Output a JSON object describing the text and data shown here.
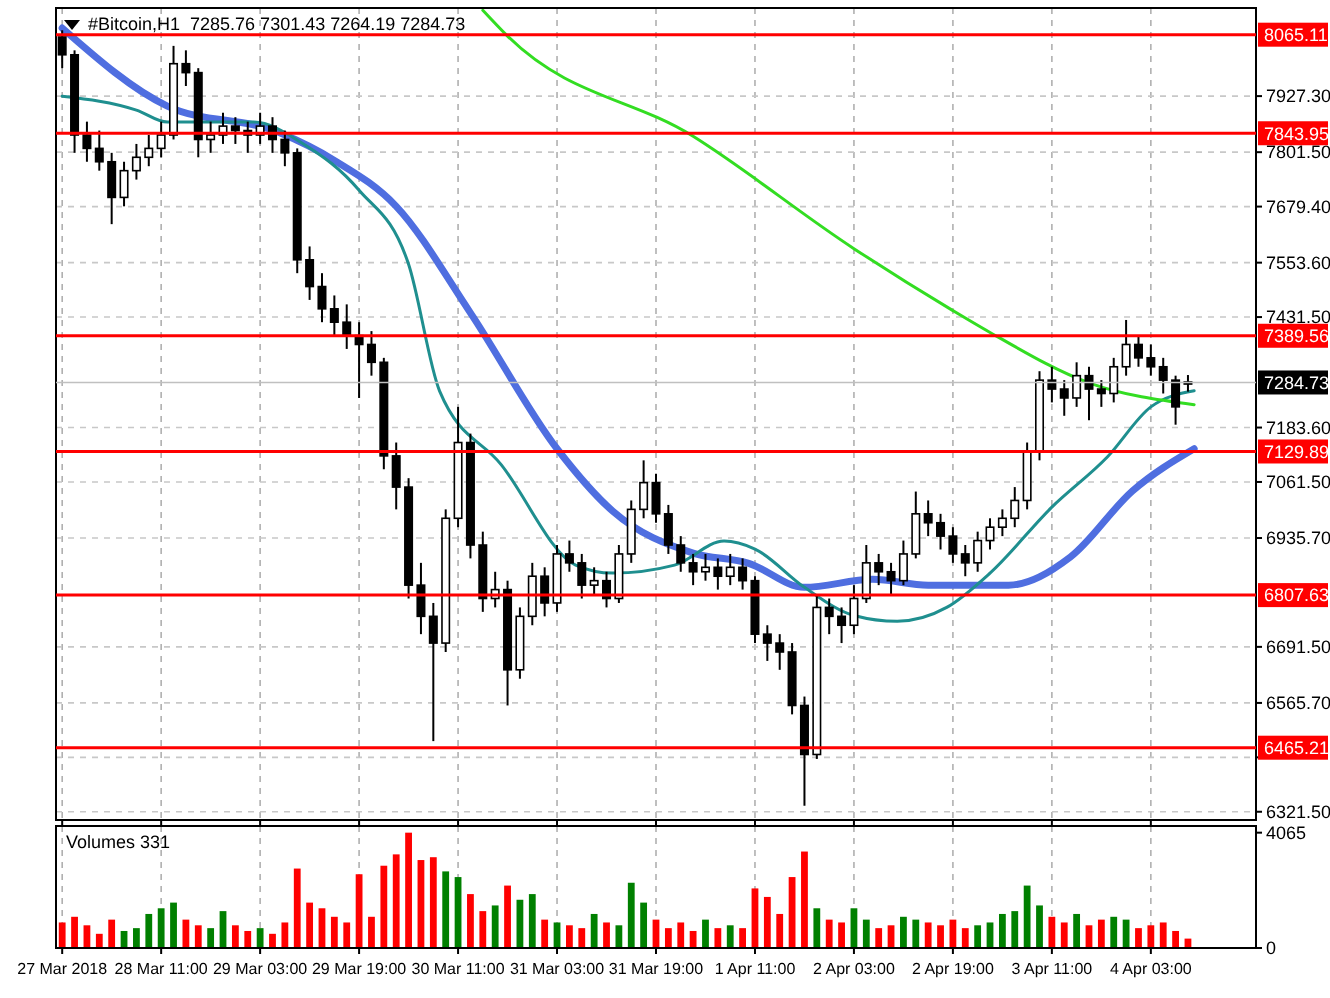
{
  "chart_data": [
    {
      "type": "candlestick",
      "title": "#Bitcoin,H1  7285.76 7301.43 7264.19 7284.73",
      "grid": true,
      "tick_labels": "y",
      "xlim": [
        "2018-03-27T18:00",
        "2018-04-04T20:00"
      ],
      "xticks": [
        {
          "value": "2018-03-27T19:00",
          "label": null
        },
        {
          "value": "2018-03-28T11:00",
          "label": null
        },
        {
          "value": "2018-03-29T03:00",
          "label": null
        },
        {
          "value": "2018-03-29T19:00",
          "label": null
        },
        {
          "value": "2018-03-30T11:00",
          "label": null
        },
        {
          "value": "2018-03-31T03:00",
          "label": null
        },
        {
          "value": "2018-03-31T19:00",
          "label": null
        },
        {
          "value": "2018-04-01T11:00",
          "label": null
        },
        {
          "value": "2018-04-02T03:00",
          "label": null
        },
        {
          "value": "2018-04-02T19:00",
          "label": null
        },
        {
          "value": "2018-04-03T11:00",
          "label": null
        },
        {
          "value": "2018-04-04T03:00",
          "label": null
        }
      ],
      "ylim": [
        6303,
        8125
      ],
      "yticks": [
        {
          "value": 7927.3,
          "label": "7927.30"
        },
        {
          "value": 7801.5,
          "label": "7801.50"
        },
        {
          "value": 7679.4,
          "label": "7679.40"
        },
        {
          "value": 7553.6,
          "label": "7553.60"
        },
        {
          "value": 7431.5,
          "label": "7431.50"
        },
        {
          "value": 7183.6,
          "label": "7183.60"
        },
        {
          "value": 7061.5,
          "label": "7061.50"
        },
        {
          "value": 6935.7,
          "label": "6935.70"
        },
        {
          "value": 6691.5,
          "label": "6691.50"
        },
        {
          "value": 6565.7,
          "label": "6565.70"
        },
        {
          "value": 6443.6,
          "label": null
        },
        {
          "value": 6321.5,
          "label": "6321.50"
        }
      ],
      "ref_lines": [
        {
          "axis": "y",
          "value": 8065.11,
          "label": "8065.11",
          "color": "#ff0000"
        },
        {
          "axis": "y",
          "value": 7843.95,
          "label": "7843.95",
          "color": "#ff0000"
        },
        {
          "axis": "y",
          "value": 7389.56,
          "label": "7389.56",
          "color": "#ff0000"
        },
        {
          "axis": "y",
          "value": 7284.73,
          "label": "7284.73",
          "color": "#c0c0c0"
        },
        {
          "axis": "y",
          "value": 7129.89,
          "label": "7129.89",
          "color": "#ff0000"
        },
        {
          "axis": "y",
          "value": 6807.63,
          "label": "6807.63",
          "color": "#ff0000"
        },
        {
          "axis": "y",
          "value": 6465.21,
          "label": "6465.21",
          "color": "#ff0000"
        }
      ],
      "series": [
        {
          "type": "candlestick",
          "x": [
            "2018-03-27T19:00",
            "2018-03-27T21:00",
            "2018-03-27T23:00",
            "2018-03-28T01:00",
            "2018-03-28T03:00",
            "2018-03-28T05:00",
            "2018-03-28T07:00",
            "2018-03-28T09:00",
            "2018-03-28T11:00",
            "2018-03-28T13:00",
            "2018-03-28T15:00",
            "2018-03-28T17:00",
            "2018-03-28T19:00",
            "2018-03-28T21:00",
            "2018-03-28T23:00",
            "2018-03-29T01:00",
            "2018-03-29T03:00",
            "2018-03-29T05:00",
            "2018-03-29T07:00",
            "2018-03-29T09:00",
            "2018-03-29T11:00",
            "2018-03-29T13:00",
            "2018-03-29T15:00",
            "2018-03-29T17:00",
            "2018-03-29T19:00",
            "2018-03-29T21:00",
            "2018-03-29T23:00",
            "2018-03-30T01:00",
            "2018-03-30T03:00",
            "2018-03-30T05:00",
            "2018-03-30T07:00",
            "2018-03-30T09:00",
            "2018-03-30T11:00",
            "2018-03-30T13:00",
            "2018-03-30T15:00",
            "2018-03-30T17:00",
            "2018-03-30T19:00",
            "2018-03-30T21:00",
            "2018-03-30T23:00",
            "2018-03-31T01:00",
            "2018-03-31T03:00",
            "2018-03-31T05:00",
            "2018-03-31T07:00",
            "2018-03-31T09:00",
            "2018-03-31T11:00",
            "2018-03-31T13:00",
            "2018-03-31T15:00",
            "2018-03-31T17:00",
            "2018-03-31T19:00",
            "2018-03-31T21:00",
            "2018-03-31T23:00",
            "2018-04-01T01:00",
            "2018-04-01T03:00",
            "2018-04-01T05:00",
            "2018-04-01T07:00",
            "2018-04-01T09:00",
            "2018-04-01T11:00",
            "2018-04-01T13:00",
            "2018-04-01T15:00",
            "2018-04-01T17:00",
            "2018-04-01T19:00",
            "2018-04-01T21:00",
            "2018-04-01T23:00",
            "2018-04-02T01:00",
            "2018-04-02T03:00",
            "2018-04-02T05:00",
            "2018-04-02T07:00",
            "2018-04-02T09:00",
            "2018-04-02T11:00",
            "2018-04-02T13:00",
            "2018-04-02T15:00",
            "2018-04-02T17:00",
            "2018-04-02T19:00",
            "2018-04-02T21:00",
            "2018-04-02T23:00",
            "2018-04-03T01:00",
            "2018-04-03T03:00",
            "2018-04-03T05:00",
            "2018-04-03T07:00",
            "2018-04-03T09:00",
            "2018-04-03T11:00",
            "2018-04-03T13:00",
            "2018-04-03T15:00",
            "2018-04-03T17:00",
            "2018-04-03T19:00",
            "2018-04-03T21:00",
            "2018-04-03T23:00",
            "2018-04-04T01:00",
            "2018-04-04T03:00",
            "2018-04-04T05:00",
            "2018-04-04T07:00",
            "2018-04-04T09:00"
          ],
          "ohlc": [
            [
              8060,
              8075,
              7990,
              8020
            ],
            [
              8020,
              8030,
              7800,
              7840
            ],
            [
              7840,
              7870,
              7780,
              7810
            ],
            [
              7810,
              7850,
              7760,
              7780
            ],
            [
              7780,
              7800,
              7640,
              7700
            ],
            [
              7700,
              7780,
              7680,
              7760
            ],
            [
              7760,
              7820,
              7740,
              7790
            ],
            [
              7790,
              7840,
              7770,
              7810
            ],
            [
              7810,
              7870,
              7790,
              7840
            ],
            [
              7840,
              8040,
              7830,
              8000
            ],
            [
              8000,
              8030,
              7950,
              7980
            ],
            [
              7980,
              7990,
              7790,
              7830
            ],
            [
              7830,
              7870,
              7800,
              7840
            ],
            [
              7840,
              7890,
              7820,
              7860
            ],
            [
              7860,
              7880,
              7820,
              7850
            ],
            [
              7850,
              7870,
              7800,
              7840
            ],
            [
              7840,
              7890,
              7820,
              7860
            ],
            [
              7860,
              7880,
              7800,
              7830
            ],
            [
              7830,
              7850,
              7770,
              7800
            ],
            [
              7800,
              7810,
              7530,
              7560
            ],
            [
              7560,
              7590,
              7470,
              7500
            ],
            [
              7500,
              7530,
              7420,
              7450
            ],
            [
              7450,
              7480,
              7390,
              7420
            ],
            [
              7420,
              7460,
              7360,
              7390
            ],
            [
              7390,
              7420,
              7250,
              7370
            ],
            [
              7370,
              7400,
              7300,
              7330
            ],
            [
              7330,
              7340,
              7090,
              7120
            ],
            [
              7120,
              7150,
              7000,
              7050
            ],
            [
              7050,
              7070,
              6800,
              6830
            ],
            [
              6830,
              6880,
              6720,
              6760
            ],
            [
              6760,
              6790,
              6480,
              6700
            ],
            [
              6700,
              7000,
              6680,
              6980
            ],
            [
              6980,
              7230,
              6960,
              7150
            ],
            [
              7150,
              7170,
              6890,
              6920
            ],
            [
              6920,
              6950,
              6770,
              6800
            ],
            [
              6800,
              6860,
              6780,
              6820
            ],
            [
              6820,
              6840,
              6560,
              6640
            ],
            [
              6640,
              6780,
              6620,
              6760
            ],
            [
              6760,
              6880,
              6740,
              6850
            ],
            [
              6850,
              6870,
              6760,
              6790
            ],
            [
              6790,
              6920,
              6770,
              6900
            ],
            [
              6900,
              6930,
              6860,
              6880
            ],
            [
              6880,
              6900,
              6800,
              6830
            ],
            [
              6830,
              6870,
              6810,
              6840
            ],
            [
              6840,
              6860,
              6780,
              6800
            ],
            [
              6800,
              6920,
              6790,
              6900
            ],
            [
              6900,
              7020,
              6880,
              7000
            ],
            [
              7000,
              7110,
              6980,
              7060
            ],
            [
              7060,
              7080,
              6970,
              6990
            ],
            [
              6990,
              7010,
              6900,
              6920
            ],
            [
              6920,
              6940,
              6860,
              6880
            ],
            [
              6880,
              6900,
              6830,
              6860
            ],
            [
              6860,
              6900,
              6840,
              6870
            ],
            [
              6870,
              6890,
              6820,
              6850
            ],
            [
              6850,
              6900,
              6830,
              6870
            ],
            [
              6870,
              6890,
              6820,
              6840
            ],
            [
              6840,
              6850,
              6700,
              6720
            ],
            [
              6720,
              6740,
              6660,
              6700
            ],
            [
              6700,
              6720,
              6640,
              6680
            ],
            [
              6680,
              6700,
              6540,
              6560
            ],
            [
              6560,
              6580,
              6335,
              6450
            ],
            [
              6450,
              6810,
              6440,
              6780
            ],
            [
              6780,
              6800,
              6720,
              6760
            ],
            [
              6760,
              6780,
              6700,
              6740
            ],
            [
              6740,
              6830,
              6720,
              6800
            ],
            [
              6800,
              6920,
              6790,
              6880
            ],
            [
              6880,
              6900,
              6830,
              6860
            ],
            [
              6860,
              6880,
              6810,
              6840
            ],
            [
              6840,
              6930,
              6830,
              6900
            ],
            [
              6900,
              7040,
              6890,
              6990
            ],
            [
              6990,
              7020,
              6940,
              6970
            ],
            [
              6970,
              6990,
              6910,
              6940
            ],
            [
              6940,
              6960,
              6880,
              6900
            ],
            [
              6900,
              6920,
              6850,
              6880
            ],
            [
              6880,
              6950,
              6860,
              6930
            ],
            [
              6930,
              6980,
              6910,
              6960
            ],
            [
              6960,
              7000,
              6940,
              6980
            ],
            [
              6980,
              7050,
              6960,
              7020
            ],
            [
              7020,
              7150,
              7000,
              7130
            ],
            [
              7130,
              7310,
              7110,
              7290
            ],
            [
              7290,
              7320,
              7240,
              7270
            ],
            [
              7270,
              7290,
              7210,
              7250
            ],
            [
              7250,
              7330,
              7230,
              7300
            ],
            [
              7300,
              7320,
              7200,
              7270
            ],
            [
              7270,
              7290,
              7230,
              7260
            ],
            [
              7260,
              7340,
              7240,
              7320
            ],
            [
              7320,
              7425,
              7300,
              7370
            ],
            [
              7370,
              7390,
              7320,
              7340
            ],
            [
              7340,
              7370,
              7300,
              7320
            ],
            [
              7320,
              7340,
              7260,
              7290
            ],
            [
              7290,
              7300,
              7190,
              7230
            ],
            [
              7285.76,
              7301.43,
              7264.19,
              7284.73
            ]
          ]
        },
        {
          "type": "line",
          "color": "#4f6ee0",
          "x": [
            "2018-03-27T19:00",
            "2018-03-28T12:00",
            "2018-03-29T06:00",
            "2018-03-29T15:00",
            "2018-03-30T01:00",
            "2018-03-30T13:00",
            "2018-03-31T03:00",
            "2018-03-31T12:00",
            "2018-04-01T01:00",
            "2018-04-01T10:00",
            "2018-04-01T19:00",
            "2018-04-02T06:00",
            "2018-04-02T15:00",
            "2018-04-03T04:00",
            "2018-04-03T14:00",
            "2018-04-04T00:00",
            "2018-04-04T10:00"
          ],
          "values": [
            8080,
            7905,
            7846,
            7783,
            7680,
            7441,
            7136,
            6996,
            6902,
            6879,
            6825,
            6843,
            6830,
            6830,
            6893,
            7041,
            7136
          ]
        },
        {
          "type": "line",
          "color": "#1f8f8f",
          "x": [
            "2018-03-27T19:00",
            "2018-03-28T07:00",
            "2018-03-28T12:00",
            "2018-03-29T02:00",
            "2018-03-29T10:00",
            "2018-03-29T19:00",
            "2018-03-30T03:00",
            "2018-03-30T08:00",
            "2018-03-30T18:00",
            "2018-03-31T06:00",
            "2018-03-31T12:00",
            "2018-03-31T22:00",
            "2018-04-01T06:00",
            "2018-04-01T11:00",
            "2018-04-01T19:00",
            "2018-04-02T03:00",
            "2018-04-02T10:00",
            "2018-04-02T18:00",
            "2018-04-03T01:00",
            "2018-04-03T11:00",
            "2018-04-03T20:00",
            "2018-04-04T03:00",
            "2018-04-04T10:00"
          ],
          "values": [
            7927,
            7896,
            7869,
            7869,
            7820,
            7716,
            7550,
            7266,
            7100,
            6875,
            6857,
            6875,
            6929,
            6911,
            6825,
            6762,
            6749,
            6780,
            6857,
            7005,
            7118,
            7230,
            7266
          ]
        },
        {
          "type": "line",
          "color": "#33dd22",
          "x": [
            "2018-03-30T15:00",
            "2018-03-30T19:00",
            "2018-04-01T01:00",
            "2018-04-02T03:00",
            "2018-04-02T19:00",
            "2018-04-03T01:00",
            "2018-04-03T17:00",
            "2018-04-04T10:00"
          ],
          "values": [
            8120,
            8062,
            7837,
            7585,
            7446,
            7397,
            7284,
            7235
          ]
        }
      ]
    },
    {
      "type": "bar",
      "title": "Volumes 331",
      "grid": "x",
      "x": [
        "2018-03-27T19:00",
        "2018-03-27T21:00",
        "2018-03-27T23:00",
        "2018-03-28T01:00",
        "2018-03-28T03:00",
        "2018-03-28T05:00",
        "2018-03-28T07:00",
        "2018-03-28T09:00",
        "2018-03-28T11:00",
        "2018-03-28T13:00",
        "2018-03-28T15:00",
        "2018-03-28T17:00",
        "2018-03-28T19:00",
        "2018-03-28T21:00",
        "2018-03-28T23:00",
        "2018-03-29T01:00",
        "2018-03-29T03:00",
        "2018-03-29T05:00",
        "2018-03-29T07:00",
        "2018-03-29T09:00",
        "2018-03-29T11:00",
        "2018-03-29T13:00",
        "2018-03-29T15:00",
        "2018-03-29T17:00",
        "2018-03-29T19:00",
        "2018-03-29T21:00",
        "2018-03-29T23:00",
        "2018-03-30T01:00",
        "2018-03-30T03:00",
        "2018-03-30T05:00",
        "2018-03-30T07:00",
        "2018-03-30T09:00",
        "2018-03-30T11:00",
        "2018-03-30T13:00",
        "2018-03-30T15:00",
        "2018-03-30T17:00",
        "2018-03-30T19:00",
        "2018-03-30T21:00",
        "2018-03-30T23:00",
        "2018-03-31T01:00",
        "2018-03-31T03:00",
        "2018-03-31T05:00",
        "2018-03-31T07:00",
        "2018-03-31T09:00",
        "2018-03-31T11:00",
        "2018-03-31T13:00",
        "2018-03-31T15:00",
        "2018-03-31T17:00",
        "2018-03-31T19:00",
        "2018-03-31T21:00",
        "2018-03-31T23:00",
        "2018-04-01T01:00",
        "2018-04-01T03:00",
        "2018-04-01T05:00",
        "2018-04-01T07:00",
        "2018-04-01T09:00",
        "2018-04-01T11:00",
        "2018-04-01T13:00",
        "2018-04-01T15:00",
        "2018-04-01T17:00",
        "2018-04-01T19:00",
        "2018-04-01T21:00",
        "2018-04-01T23:00",
        "2018-04-02T01:00",
        "2018-04-02T03:00",
        "2018-04-02T05:00",
        "2018-04-02T07:00",
        "2018-04-02T09:00",
        "2018-04-02T11:00",
        "2018-04-02T13:00",
        "2018-04-02T15:00",
        "2018-04-02T17:00",
        "2018-04-02T19:00",
        "2018-04-02T21:00",
        "2018-04-02T23:00",
        "2018-04-03T01:00",
        "2018-04-03T03:00",
        "2018-04-03T05:00",
        "2018-04-03T07:00",
        "2018-04-03T09:00",
        "2018-04-03T11:00",
        "2018-04-03T13:00",
        "2018-04-03T15:00",
        "2018-04-03T17:00",
        "2018-04-03T19:00",
        "2018-04-03T21:00",
        "2018-04-03T23:00",
        "2018-04-04T01:00",
        "2018-04-04T03:00",
        "2018-04-04T05:00",
        "2018-04-04T07:00",
        "2018-04-04T09:00"
      ],
      "values": [
        900,
        1100,
        800,
        500,
        1000,
        600,
        700,
        1200,
        1400,
        1600,
        1000,
        800,
        700,
        1300,
        800,
        600,
        700,
        500,
        900,
        2800,
        1600,
        1400,
        1100,
        900,
        2600,
        1100,
        2900,
        3300,
        4065,
        3100,
        3200,
        2700,
        2500,
        1900,
        1300,
        1500,
        2200,
        1700,
        1900,
        1000,
        900,
        800,
        700,
        1200,
        900,
        800,
        2300,
        1600,
        1000,
        700,
        900,
        600,
        1000,
        700,
        800,
        700,
        2100,
        1800,
        1200,
        2500,
        3400,
        1400,
        1000,
        900,
        1400,
        1000,
        700,
        800,
        1100,
        1000,
        900,
        800,
        1000,
        700,
        800,
        900,
        1200,
        1300,
        2200,
        1500,
        1100,
        900,
        1200,
        800,
        1000,
        1100,
        1000,
        700,
        800,
        900,
        600,
        331
      ],
      "colors": [
        "#ff0000",
        "#ff0000",
        "#ff0000",
        "#ff0000",
        "#ff0000",
        "#008000",
        "#008000",
        "#008000",
        "#008000",
        "#008000",
        "#ff0000",
        "#ff0000",
        "#008000",
        "#008000",
        "#ff0000",
        "#ff0000",
        "#008000",
        "#ff0000",
        "#ff0000",
        "#ff0000",
        "#ff0000",
        "#ff0000",
        "#ff0000",
        "#ff0000",
        "#ff0000",
        "#ff0000",
        "#ff0000",
        "#ff0000",
        "#ff0000",
        "#ff0000",
        "#ff0000",
        "#008000",
        "#008000",
        "#ff0000",
        "#ff0000",
        "#008000",
        "#ff0000",
        "#008000",
        "#008000",
        "#ff0000",
        "#008000",
        "#ff0000",
        "#ff0000",
        "#008000",
        "#ff0000",
        "#008000",
        "#008000",
        "#008000",
        "#ff0000",
        "#ff0000",
        "#ff0000",
        "#ff0000",
        "#008000",
        "#ff0000",
        "#008000",
        "#ff0000",
        "#ff0000",
        "#ff0000",
        "#ff0000",
        "#ff0000",
        "#ff0000",
        "#008000",
        "#ff0000",
        "#ff0000",
        "#008000",
        "#008000",
        "#ff0000",
        "#ff0000",
        "#008000",
        "#008000",
        "#ff0000",
        "#ff0000",
        "#ff0000",
        "#ff0000",
        "#008000",
        "#008000",
        "#008000",
        "#008000",
        "#008000",
        "#008000",
        "#ff0000",
        "#ff0000",
        "#008000",
        "#ff0000",
        "#ff0000",
        "#008000",
        "#008000",
        "#ff0000",
        "#ff0000",
        "#ff0000",
        "#ff0000",
        "#ff0000"
      ],
      "xlim": [
        "2018-03-27T18:00",
        "2018-04-04T20:00"
      ],
      "xticks": [
        {
          "value": "2018-03-27T19:00",
          "label": "27 Mar 2018"
        },
        {
          "value": "2018-03-28T11:00",
          "label": "28 Mar 11:00"
        },
        {
          "value": "2018-03-29T03:00",
          "label": "29 Mar 03:00"
        },
        {
          "value": "2018-03-29T19:00",
          "label": "29 Mar 19:00"
        },
        {
          "value": "2018-03-30T11:00",
          "label": "30 Mar 11:00"
        },
        {
          "value": "2018-03-31T03:00",
          "label": "31 Mar 03:00"
        },
        {
          "value": "2018-03-31T19:00",
          "label": "31 Mar 19:00"
        },
        {
          "value": "2018-04-01T11:00",
          "label": "1 Apr 11:00"
        },
        {
          "value": "2018-04-02T03:00",
          "label": "2 Apr 03:00"
        },
        {
          "value": "2018-04-02T19:00",
          "label": "2 Apr 19:00"
        },
        {
          "value": "2018-04-03T11:00",
          "label": "3 Apr 11:00"
        },
        {
          "value": "2018-04-04T03:00",
          "label": "4 Apr 03:00"
        }
      ],
      "ylim": [
        0,
        4300
      ],
      "yticks": [
        0,
        4065
      ]
    }
  ]
}
